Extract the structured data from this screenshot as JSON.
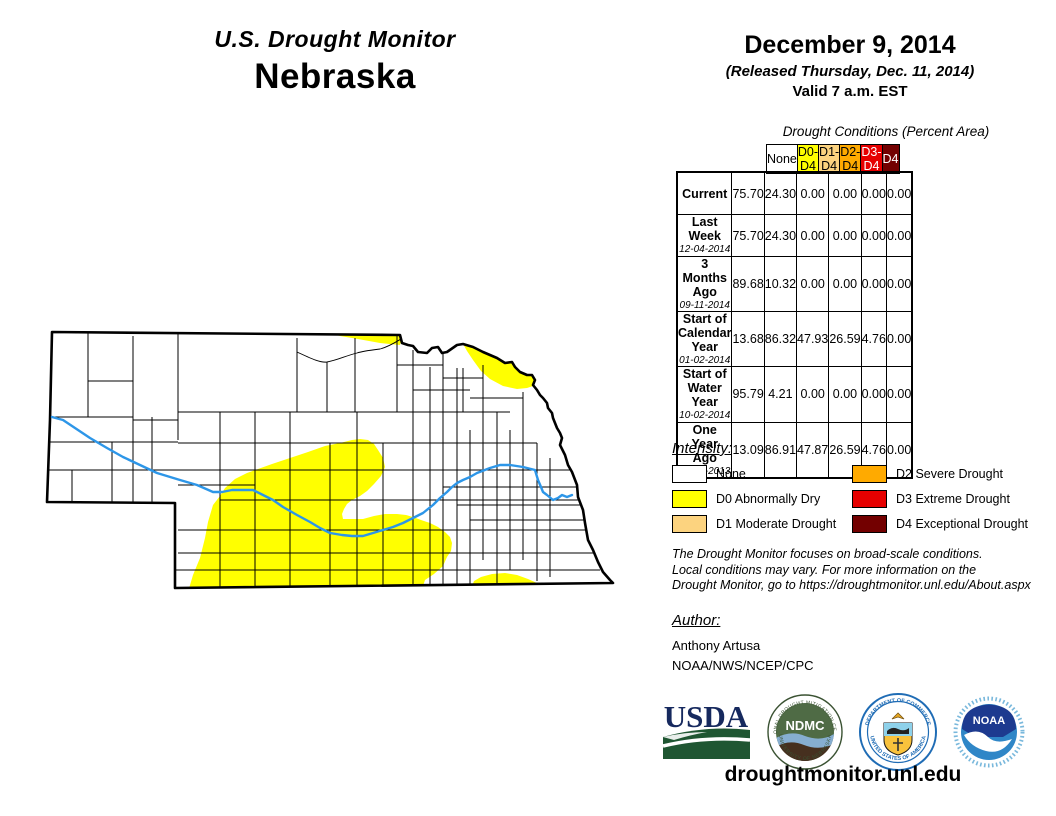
{
  "header": {
    "monitor_title": "U.S. Drought Monitor",
    "region": "Nebraska",
    "date": "December 9, 2014",
    "released": "(Released Thursday, Dec. 11, 2014)",
    "valid": "Valid 7 a.m. EST"
  },
  "table": {
    "caption": "Drought Conditions (Percent Area)",
    "columns": [
      {
        "label": "None",
        "bg": "#FFFFFF",
        "fg": "#000000"
      },
      {
        "label": "D0-D4",
        "bg": "#FFFF00",
        "fg": "#000000"
      },
      {
        "label": "D1-D4",
        "bg": "#FCD37F",
        "fg": "#000000"
      },
      {
        "label": "D2-D4",
        "bg": "#FFAA00",
        "fg": "#000000"
      },
      {
        "label": "D3-D4",
        "bg": "#E60000",
        "fg": "#FFFFFF"
      },
      {
        "label": "D4",
        "bg": "#730000",
        "fg": "#FFFFFF"
      }
    ],
    "rows": [
      {
        "label": "Current",
        "date": "",
        "values": [
          "75.70",
          "24.30",
          "0.00",
          "0.00",
          "0.00",
          "0.00"
        ]
      },
      {
        "label": "Last Week",
        "date": "12-04-2014",
        "values": [
          "75.70",
          "24.30",
          "0.00",
          "0.00",
          "0.00",
          "0.00"
        ]
      },
      {
        "label": "3 Months Ago",
        "date": "09-11-2014",
        "values": [
          "89.68",
          "10.32",
          "0.00",
          "0.00",
          "0.00",
          "0.00"
        ]
      },
      {
        "label": "Start of Calendar Year",
        "date": "01-02-2014",
        "values": [
          "13.68",
          "86.32",
          "47.93",
          "26.59",
          "4.76",
          "0.00"
        ]
      },
      {
        "label": "Start of Water Year",
        "date": "10-02-2014",
        "values": [
          "95.79",
          "4.21",
          "0.00",
          "0.00",
          "0.00",
          "0.00"
        ]
      },
      {
        "label": "One Year Ago",
        "date": "12-12-2013",
        "values": [
          "13.09",
          "86.91",
          "47.87",
          "26.59",
          "4.76",
          "0.00"
        ]
      }
    ]
  },
  "legend": {
    "heading": "Intensity:",
    "items": [
      {
        "label": "None",
        "color": "#FFFFFF"
      },
      {
        "label": "D0 Abnormally Dry",
        "color": "#FFFF00"
      },
      {
        "label": "D1 Moderate Drought",
        "color": "#FCD37F"
      },
      {
        "label": "D2 Severe Drought",
        "color": "#FFAA00"
      },
      {
        "label": "D3 Extreme Drought",
        "color": "#E60000"
      },
      {
        "label": "D4 Exceptional Drought",
        "color": "#730000"
      }
    ]
  },
  "notes": {
    "lines": [
      "The Drought Monitor focuses on broad-scale conditions.",
      "Local conditions may vary. For more information on the",
      "Drought Monitor, go to https://droughtmonitor.unl.edu/About.aspx"
    ]
  },
  "author": {
    "heading": "Author:",
    "name": "Anthony Artusa",
    "org": "NOAA/NWS/NCEP/CPC"
  },
  "logos": {
    "usda": "USDA",
    "ndmc": "NDMC",
    "ndmc_ring_top": "NATIONAL DROUGHT MITIGATION CENTER",
    "ndmc_ring_bottom": "UNIVERSITY OF NEBRASKA",
    "doc_ring_top": "DEPARTMENT OF COMMERCE",
    "doc_ring_bottom": "UNITED STATES OF AMERICA",
    "noaa": "NOAA"
  },
  "footer": {
    "url": "droughtmonitor.unl.edu"
  },
  "map": {
    "state": "Nebraska",
    "d0_color": "#FFFF00",
    "none_color": "#FFFFFF",
    "river_color": "#2D96E8",
    "border_color": "#000000"
  }
}
